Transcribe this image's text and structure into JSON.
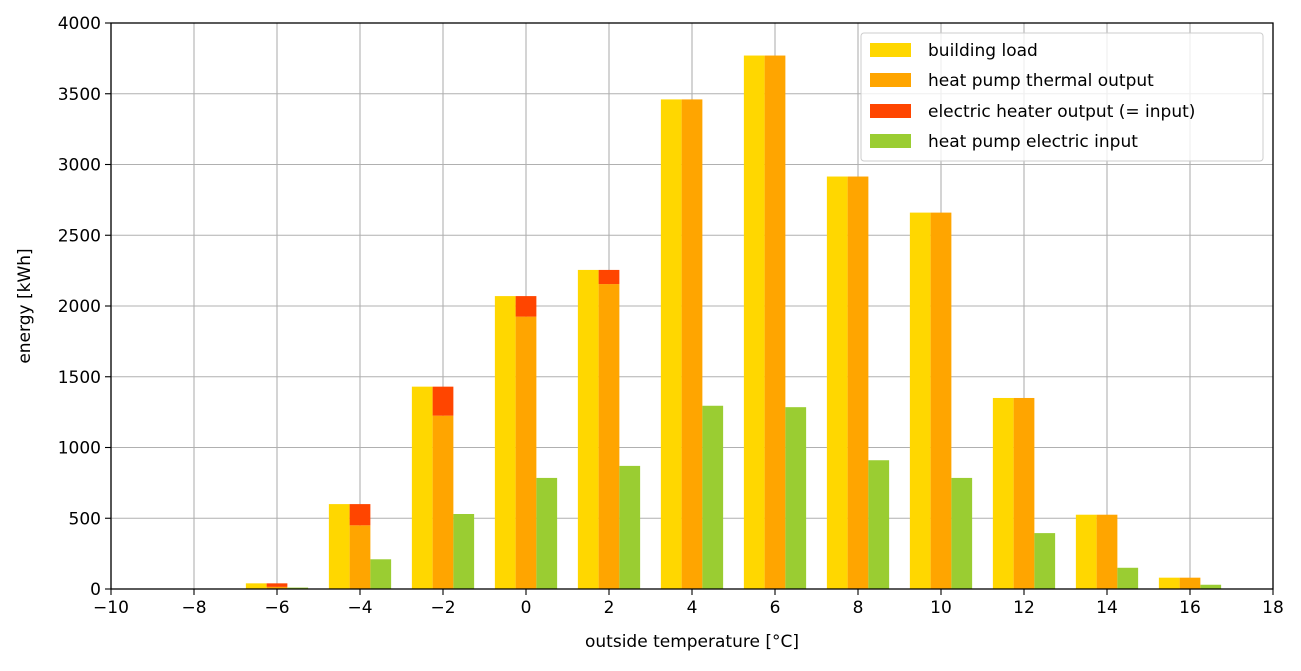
{
  "chart_data": {
    "type": "bar",
    "xlabel": "outside temperature [°C]",
    "ylabel": "energy [kWh]",
    "xlim": [
      -10,
      18
    ],
    "ylim": [
      0,
      4000
    ],
    "xticks": [
      "−10",
      "−8",
      "−6",
      "−4",
      "−2",
      "0",
      "2",
      "4",
      "6",
      "8",
      "10",
      "12",
      "14",
      "16",
      "18"
    ],
    "yticks": [
      "0",
      "500",
      "1000",
      "1500",
      "2000",
      "2500",
      "3000",
      "3500",
      "4000"
    ],
    "grid": true,
    "legend_position": "top-right",
    "x": [
      -8,
      -6,
      -4,
      -2,
      0,
      2,
      4,
      6,
      8,
      10,
      12,
      14,
      16
    ],
    "series": [
      {
        "name": "building load",
        "color": "#FFD700",
        "values": [
          0,
          40,
          600,
          1430,
          2070,
          2255,
          3460,
          3770,
          2915,
          2660,
          1350,
          525,
          80
        ]
      },
      {
        "name": "heat pump thermal output",
        "color": "#FFA500",
        "values": [
          0,
          15,
          450,
          1225,
          1925,
          2155,
          3460,
          3770,
          2915,
          2660,
          1350,
          525,
          80
        ]
      },
      {
        "name": "electric heater output (= input)",
        "color": "#FF4500",
        "values": [
          0,
          25,
          150,
          205,
          145,
          100,
          0,
          0,
          0,
          0,
          0,
          0,
          0
        ]
      },
      {
        "name": "heat pump electric input",
        "color": "#9ACD32",
        "values": [
          0,
          10,
          210,
          530,
          785,
          870,
          1295,
          1285,
          910,
          785,
          395,
          150,
          30
        ]
      }
    ]
  }
}
